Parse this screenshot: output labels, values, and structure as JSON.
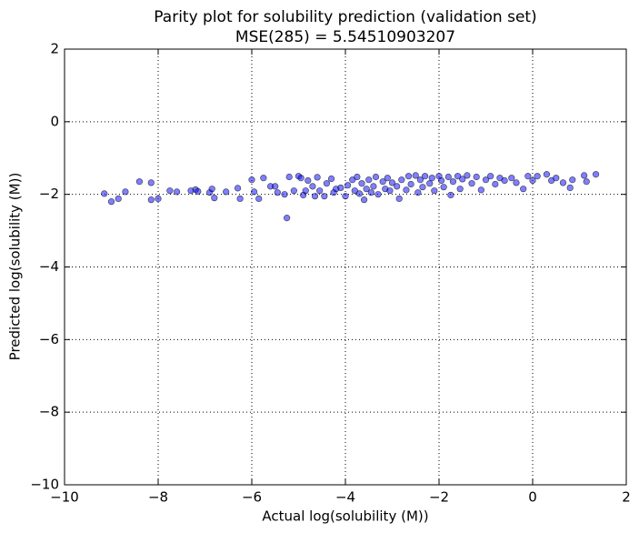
{
  "chart_data": {
    "type": "scatter",
    "title": "Parity plot for solubility prediction (validation set)",
    "subtitle": "MSE(285) = 5.54510903207",
    "x_label": "Actual log(solubility (M))",
    "y_label": "Predicted log(solubility (M))",
    "xlim": [
      -10,
      2
    ],
    "ylim": [
      -10,
      2
    ],
    "xticks": [
      {
        "value": -10,
        "label": "−10"
      },
      {
        "value": -8,
        "label": "−8"
      },
      {
        "value": -6,
        "label": "−6"
      },
      {
        "value": -4,
        "label": "−4"
      },
      {
        "value": -2,
        "label": "−2"
      },
      0,
      2
    ],
    "yticks": [
      {
        "value": -10,
        "label": "−10"
      },
      {
        "value": -8,
        "label": "−8"
      },
      {
        "value": -6,
        "label": "−6"
      },
      {
        "value": -4,
        "label": "−4"
      },
      {
        "value": -2,
        "label": "−2"
      },
      0,
      2
    ],
    "grid": true,
    "color": "#0000ff",
    "x": [
      -9.15,
      -9.0,
      -8.85,
      -8.7,
      -8.4,
      -8.15,
      -8.15,
      -8.0,
      -7.75,
      -7.6,
      -7.3,
      -7.2,
      -7.15,
      -6.9,
      -6.85,
      -6.8,
      -6.55,
      -6.3,
      -6.25,
      -6.0,
      -5.95,
      -5.85,
      -5.75,
      -5.6,
      -5.5,
      -5.45,
      -5.3,
      -5.25,
      -5.2,
      -5.1,
      -5.0,
      -4.95,
      -4.9,
      -4.85,
      -4.8,
      -4.7,
      -4.65,
      -4.6,
      -4.55,
      -4.45,
      -4.4,
      -4.3,
      -4.25,
      -4.2,
      -4.1,
      -4.0,
      -3.95,
      -3.85,
      -3.8,
      -3.75,
      -3.7,
      -3.65,
      -3.6,
      -3.55,
      -3.5,
      -3.45,
      -3.4,
      -3.35,
      -3.3,
      -3.2,
      -3.15,
      -3.1,
      -3.05,
      -3.0,
      -2.9,
      -2.85,
      -2.8,
      -2.7,
      -2.65,
      -2.6,
      -2.5,
      -2.45,
      -2.4,
      -2.35,
      -2.3,
      -2.2,
      -2.15,
      -2.1,
      -2.0,
      -1.95,
      -1.9,
      -1.8,
      -1.75,
      -1.7,
      -1.6,
      -1.55,
      -1.5,
      -1.4,
      -1.3,
      -1.2,
      -1.1,
      -1.0,
      -0.9,
      -0.8,
      -0.7,
      -0.6,
      -0.45,
      -0.35,
      -0.2,
      -0.1,
      0.0,
      0.1,
      0.3,
      0.4,
      0.5,
      0.65,
      0.8,
      0.85,
      1.1,
      1.15,
      1.35
    ],
    "y": [
      -1.98,
      -2.2,
      -2.12,
      -1.93,
      -1.65,
      -1.68,
      -2.15,
      -2.12,
      -1.9,
      -1.93,
      -1.9,
      -1.87,
      -1.92,
      -1.95,
      -1.85,
      -2.1,
      -1.93,
      -1.83,
      -2.12,
      -1.6,
      -1.93,
      -2.12,
      -1.55,
      -1.78,
      -1.78,
      -1.95,
      -2.0,
      -2.65,
      -1.52,
      -1.9,
      -1.5,
      -1.55,
      -2.02,
      -1.9,
      -1.62,
      -1.78,
      -2.05,
      -1.53,
      -1.9,
      -2.05,
      -1.7,
      -1.57,
      -1.95,
      -1.85,
      -1.82,
      -2.05,
      -1.75,
      -1.6,
      -1.9,
      -1.52,
      -1.98,
      -1.7,
      -2.15,
      -1.85,
      -1.6,
      -1.95,
      -1.78,
      -1.52,
      -2.0,
      -1.65,
      -1.85,
      -1.55,
      -1.9,
      -1.68,
      -1.78,
      -2.12,
      -1.6,
      -1.88,
      -1.5,
      -1.72,
      -1.48,
      -1.95,
      -1.6,
      -1.8,
      -1.5,
      -1.7,
      -1.55,
      -1.9,
      -1.5,
      -1.62,
      -1.8,
      -1.52,
      -2.02,
      -1.65,
      -1.5,
      -1.85,
      -1.58,
      -1.48,
      -1.7,
      -1.52,
      -1.88,
      -1.6,
      -1.5,
      -1.72,
      -1.55,
      -1.62,
      -1.55,
      -1.68,
      -1.85,
      -1.5,
      -1.62,
      -1.5,
      -1.45,
      -1.62,
      -1.55,
      -1.68,
      -1.82,
      -1.6,
      -1.48,
      -1.65,
      -1.45
    ]
  }
}
